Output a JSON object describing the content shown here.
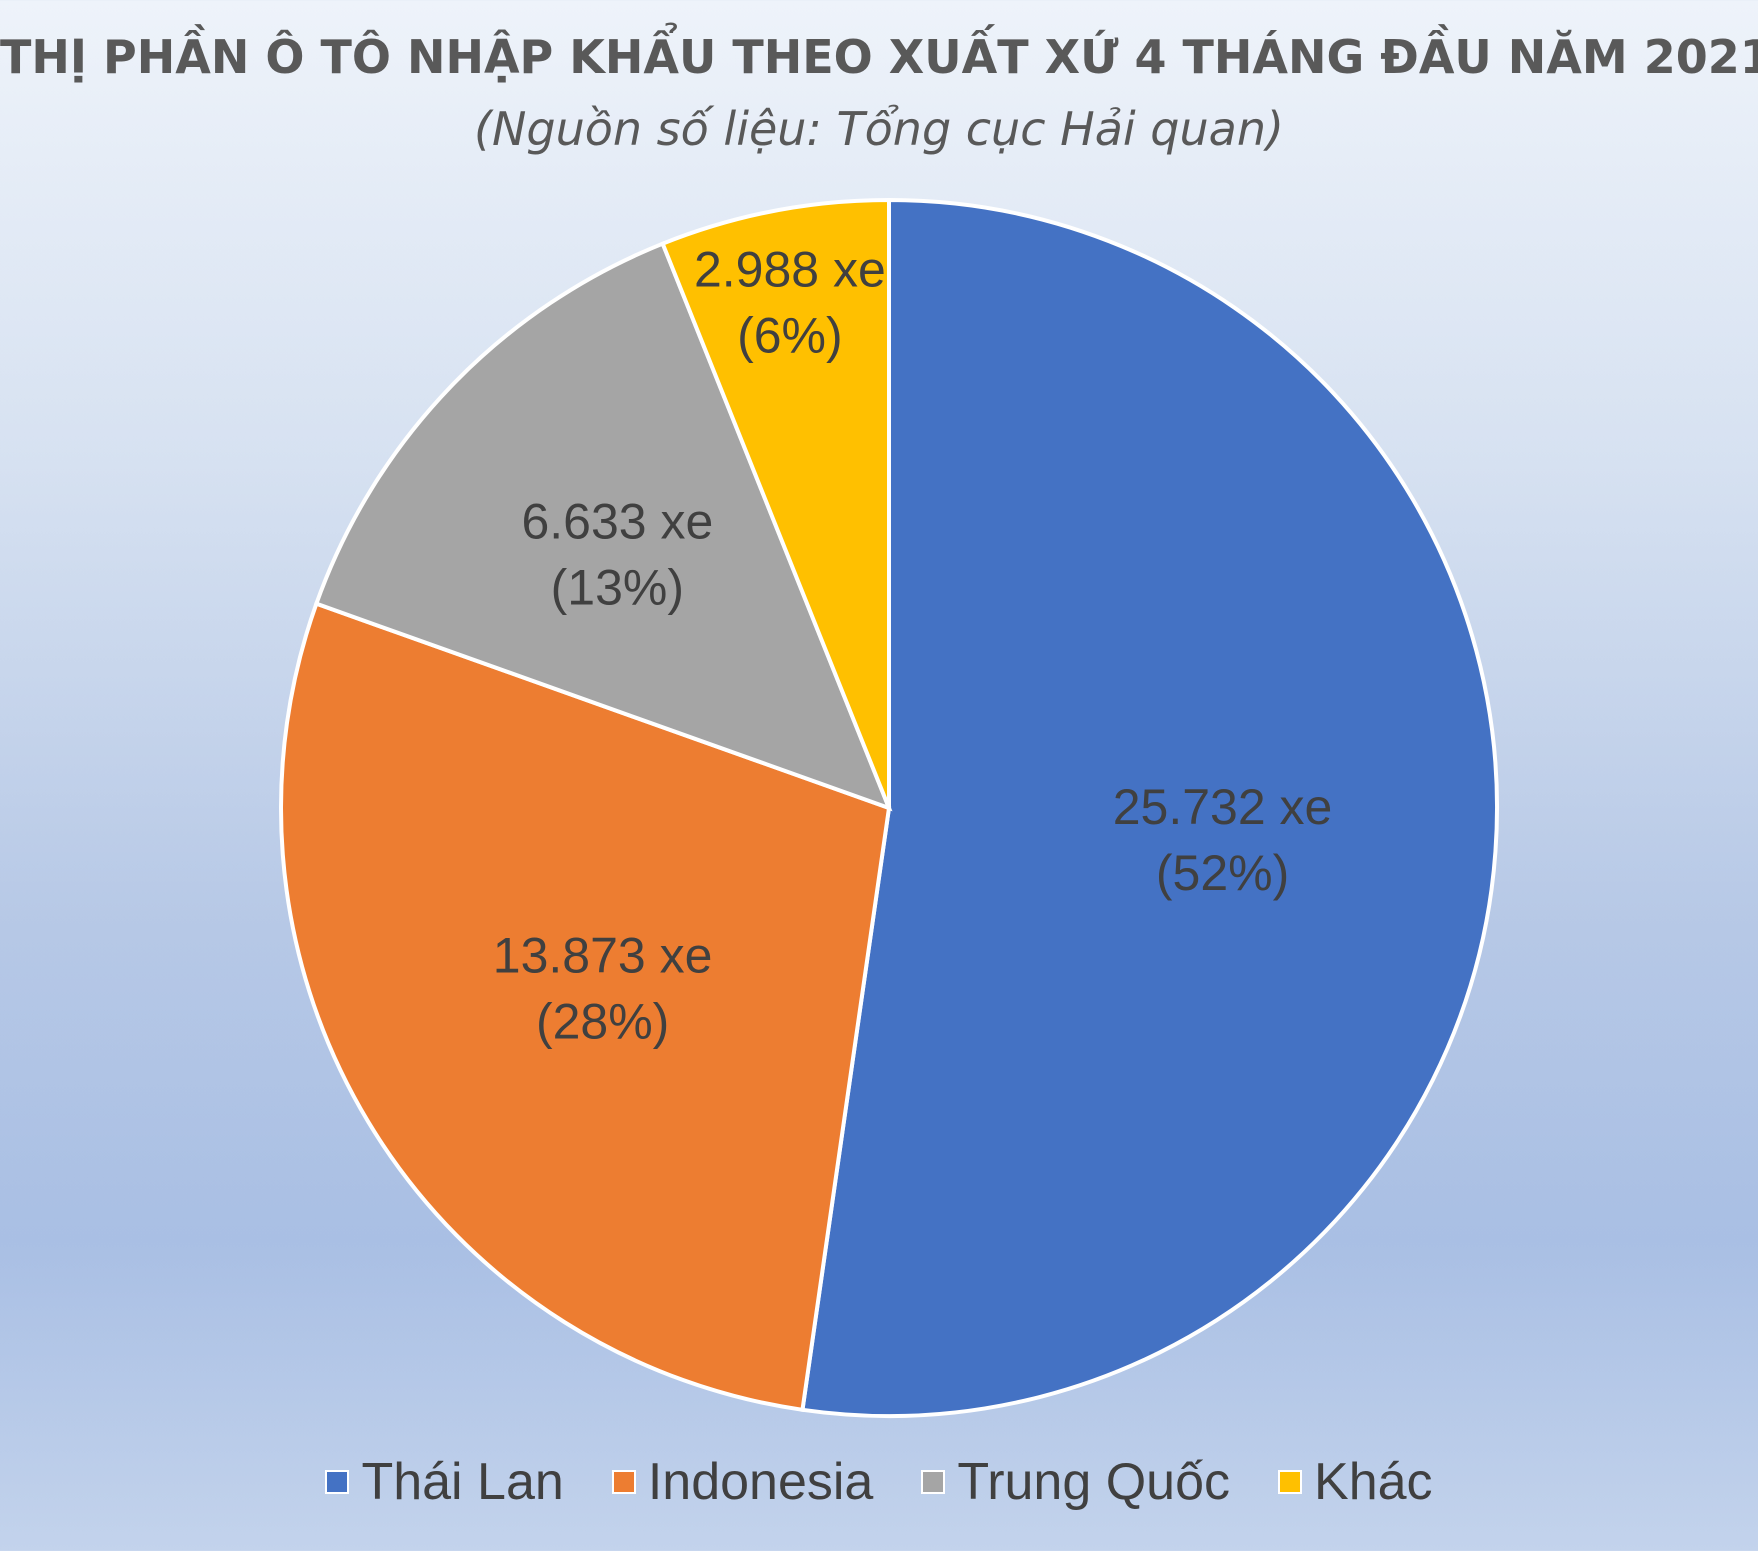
{
  "chart_data": {
    "type": "pie",
    "title": "THỊ PHẦN Ô TÔ NHẬP KHẨU THEO XUẤT XỨ 4 THÁNG ĐẦU NĂM 2021",
    "subtitle": "(Nguồn số liệu: Tổng cục Hải quan)",
    "unit": "xe",
    "legend_position": "bottom",
    "slices": [
      {
        "name": "Thái Lan",
        "value": 25732,
        "value_label": "25.732 xe",
        "percent_label": "(52%)",
        "color": "#4472C4"
      },
      {
        "name": "Indonesia",
        "value": 13873,
        "value_label": "13.873 xe",
        "percent_label": "(28%)",
        "color": "#ED7D31"
      },
      {
        "name": "Trung Quốc",
        "value": 6633,
        "value_label": "6.633 xe",
        "percent_label": "(13%)",
        "color": "#A5A5A5"
      },
      {
        "name": "Khác",
        "value": 2988,
        "value_label": "2.988 xe",
        "percent_label": "(6%)",
        "color": "#FFC000"
      }
    ]
  }
}
